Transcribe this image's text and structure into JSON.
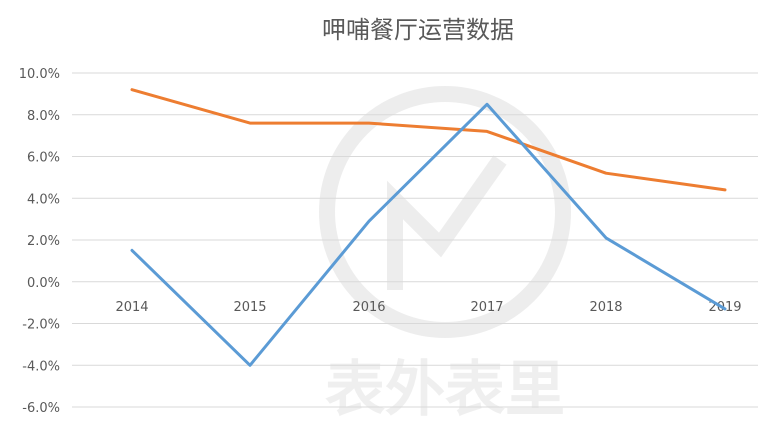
{
  "chart_data": {
    "type": "line",
    "title": "呷哺餐厅运营数据",
    "xlabel": "",
    "ylabel": "",
    "categories": [
      "2014",
      "2015",
      "2016",
      "2017",
      "2018",
      "2019"
    ],
    "ylim": [
      -6.0,
      10.0
    ],
    "yticks": [
      "10.0%",
      "8.0%",
      "6.0%",
      "4.0%",
      "2.0%",
      "0.0%",
      "-2.0%",
      "-4.0%",
      "-6.0%"
    ],
    "ytick_values": [
      10,
      8,
      6,
      4,
      2,
      0,
      -2,
      -4,
      -6
    ],
    "grid": true,
    "legend": "none",
    "series": [
      {
        "color": "#ed7d31",
        "values": [
          9.2,
          7.6,
          7.6,
          7.2,
          5.2,
          4.4
        ]
      },
      {
        "color": "#5b9bd5",
        "values": [
          1.5,
          -4.0,
          2.9,
          8.5,
          2.1,
          -1.3
        ]
      }
    ],
    "watermark_text": "表外表里"
  }
}
